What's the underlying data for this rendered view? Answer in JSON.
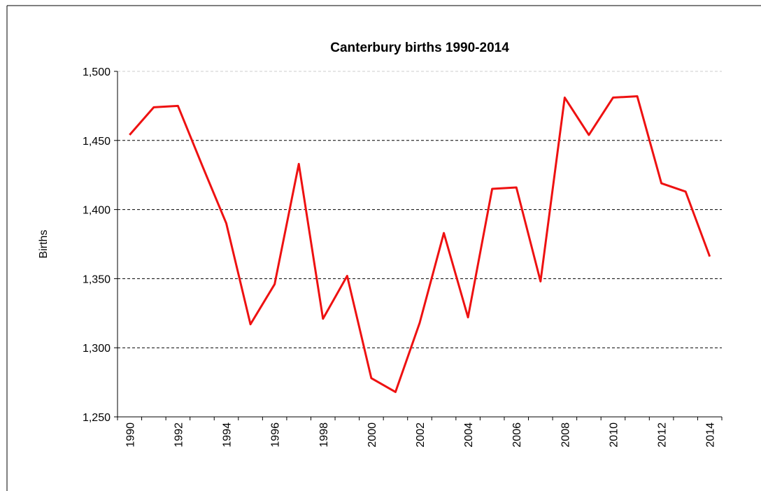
{
  "chart_data": {
    "type": "line",
    "title": "Canterbury births 1990-2014",
    "y_label": "Births",
    "categories": [
      "1990",
      null,
      "1992",
      null,
      "1994",
      null,
      "1996",
      null,
      "1998",
      null,
      "2000",
      null,
      "2002",
      null,
      "2004",
      null,
      "2006",
      null,
      "2008",
      null,
      "2010",
      null,
      "2012",
      null,
      "2014"
    ],
    "series": [
      {
        "name": "Births",
        "color": "#ee1111",
        "values": [
          1454,
          1474,
          1475,
          1432,
          1390,
          1317,
          1346,
          1433,
          1321,
          1352,
          1278,
          1268,
          1318,
          1383,
          1322,
          1415,
          1416,
          1348,
          1481,
          1454,
          1481,
          1482,
          1419,
          1413,
          1366
        ]
      }
    ],
    "ylim": [
      1250,
      1500
    ],
    "yticks": [
      {
        "value": 1250,
        "label": "1,250"
      },
      {
        "value": 1300,
        "label": "1,300"
      },
      {
        "value": 1350,
        "label": "1,350"
      },
      {
        "value": 1400,
        "label": "1,400"
      },
      {
        "value": 1450,
        "label": "1,450"
      },
      {
        "value": 1500,
        "label": "1,500"
      }
    ],
    "grid": true
  }
}
